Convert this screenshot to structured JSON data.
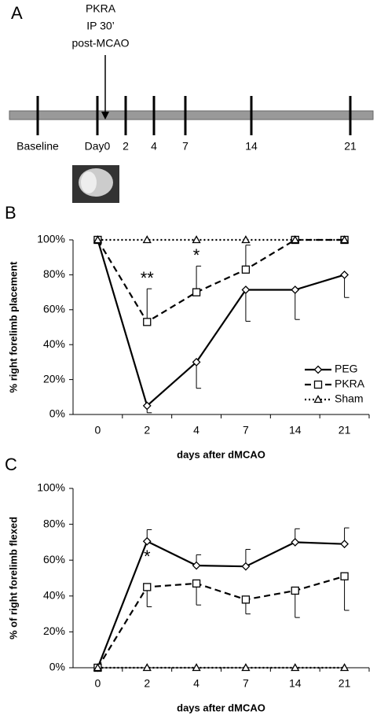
{
  "panel_a": {
    "label": "A",
    "annotation": [
      "PKRA",
      "IP 30’",
      "post-MCAO"
    ],
    "timeline": [
      "Baseline",
      "Day0",
      "2",
      "4",
      "7",
      "14",
      "21"
    ]
  },
  "chart_data": [
    {
      "type": "line",
      "panel_label": "B",
      "xlabel": "days after dMCAO",
      "ylabel": "% right forelimb placement",
      "categories": [
        "0",
        "2",
        "4",
        "7",
        "14",
        "21"
      ],
      "ylim": [
        0,
        100
      ],
      "yticks": [
        {
          "value": 0,
          "label": "0%"
        },
        {
          "value": 20,
          "label": "20%"
        },
        {
          "value": 40,
          "label": "40%"
        },
        {
          "value": 60,
          "label": "60%"
        },
        {
          "value": 80,
          "label": "80%"
        },
        {
          "value": 100,
          "label": "100%"
        }
      ],
      "legend": "right",
      "annotations": [
        "**",
        "*"
      ],
      "series": [
        {
          "name": "PEG",
          "color": "#000000",
          "marker": "diamond",
          "dash": "solid",
          "error_direction": "down",
          "values": [
            100,
            5,
            30,
            71.4,
            71.4,
            80
          ],
          "errors": [
            null,
            4,
            15,
            18,
            17,
            13
          ]
        },
        {
          "name": "PKRA",
          "color": "#000000",
          "marker": "square",
          "dash": "dashed",
          "error_direction": "up",
          "values": [
            100,
            53,
            70,
            83,
            100,
            100
          ],
          "errors": [
            null,
            19,
            15,
            14,
            null,
            null
          ]
        },
        {
          "name": "Sham",
          "color": "#000000",
          "marker": "triangle",
          "dash": "dotted",
          "error_direction": "up",
          "values": [
            100,
            100,
            100,
            100,
            100,
            100
          ],
          "errors": [
            null,
            null,
            null,
            null,
            null,
            null
          ]
        }
      ]
    },
    {
      "type": "line",
      "panel_label": "C",
      "xlabel": "days after dMCAO",
      "ylabel": "% of right forelimb flexed",
      "categories": [
        "0",
        "2",
        "4",
        "7",
        "14",
        "21"
      ],
      "ylim": [
        0,
        100
      ],
      "yticks": [
        {
          "value": 0,
          "label": "0%"
        },
        {
          "value": 20,
          "label": "20%"
        },
        {
          "value": 40,
          "label": "40%"
        },
        {
          "value": 60,
          "label": "60%"
        },
        {
          "value": 80,
          "label": "80%"
        },
        {
          "value": 100,
          "label": "100%"
        }
      ],
      "annotations": [
        "*"
      ],
      "series": [
        {
          "name": "PEG",
          "color": "#000000",
          "marker": "diamond",
          "dash": "solid",
          "error_direction": "up",
          "values": [
            0,
            70.5,
            57,
            56.5,
            70,
            69
          ],
          "errors": [
            null,
            6.5,
            6,
            9.5,
            7.5,
            9
          ]
        },
        {
          "name": "PKRA",
          "color": "#000000",
          "marker": "square",
          "dash": "dashed",
          "error_direction": "down",
          "values": [
            0,
            45,
            47,
            38,
            43,
            51
          ],
          "errors": [
            null,
            11,
            12,
            8,
            15,
            19
          ]
        },
        {
          "name": "Sham",
          "color": "#000000",
          "marker": "triangle",
          "dash": "dotted",
          "error_direction": "up",
          "values": [
            0,
            0,
            0,
            0,
            0,
            0
          ],
          "errors": [
            null,
            null,
            null,
            null,
            null,
            null
          ]
        }
      ]
    }
  ]
}
